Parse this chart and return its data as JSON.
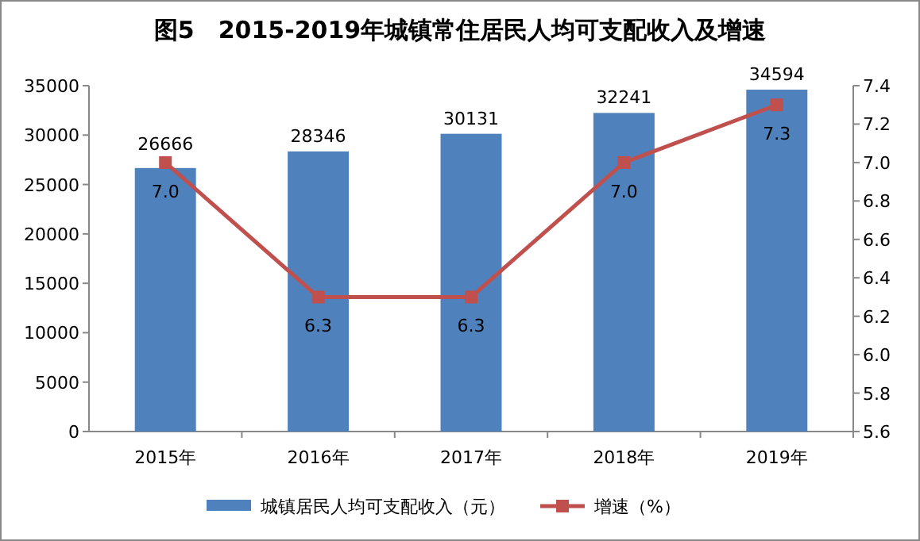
{
  "chart_data": {
    "type": "bar",
    "title": "图5　2015-2019年城镇常住居民人均可支配收入及增速",
    "categories": [
      "2015年",
      "2016年",
      "2017年",
      "2018年",
      "2019年"
    ],
    "series": [
      {
        "name": "城镇居民人均可支配收入（元）",
        "color": "#4f81bd",
        "values": [
          26666,
          28346,
          30131,
          32241,
          34594
        ],
        "value_labels": [
          "26666",
          "28346",
          "30131",
          "32241",
          "34594"
        ]
      },
      {
        "name": "增速（%）",
        "type": "line",
        "axis": "y2",
        "color": "#c0504d",
        "marker": "square",
        "values": [
          7.0,
          6.3,
          6.3,
          7.0,
          7.3
        ],
        "value_labels": [
          "7.0",
          "6.3",
          "6.3",
          "7.0",
          "7.3"
        ]
      }
    ],
    "ylim": [
      0,
      35000
    ],
    "yticks": [
      0,
      5000,
      10000,
      15000,
      20000,
      25000,
      30000,
      35000
    ],
    "y2lim": [
      5.6,
      7.4
    ],
    "y2ticks": [
      {
        "value": 5.6,
        "label": "5.6"
      },
      {
        "value": 5.8,
        "label": "5.8"
      },
      {
        "value": 6,
        "label": "6.0"
      },
      {
        "value": 6.2,
        "label": "6.2"
      },
      {
        "value": 6.4,
        "label": "6.4"
      },
      {
        "value": 6.6,
        "label": "6.6"
      },
      {
        "value": 6.8,
        "label": "6.8"
      },
      {
        "value": 7,
        "label": "7.0"
      },
      {
        "value": 7.2,
        "label": "7.2"
      },
      {
        "value": 7.4,
        "label": "7.4"
      }
    ],
    "grid": false,
    "legend": "bottom"
  }
}
